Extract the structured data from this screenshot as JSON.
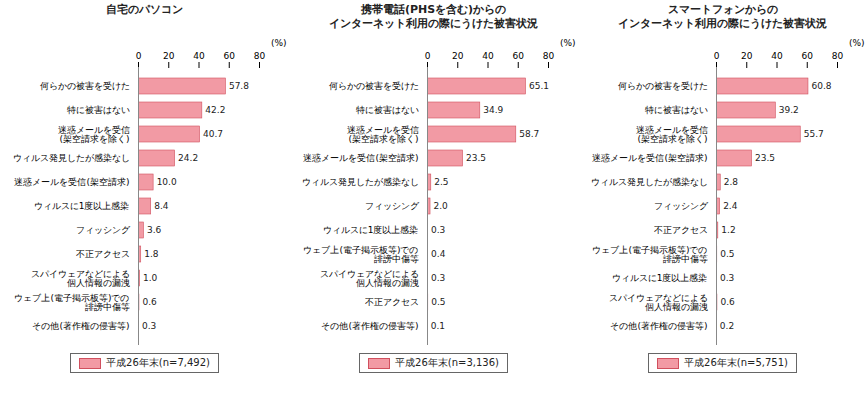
{
  "chart_data": [
    {
      "type": "bar",
      "orientation": "horizontal",
      "title": "自宅のパソコン",
      "xlabel": "(%)",
      "categories": [
        "何らかの被害を受けた",
        "特に被害はない",
        "迷惑メールを受信\n(架空請求を除く)",
        "ウィルス発見したが感染なし",
        "迷惑メールを受信(架空請求)",
        "ウィルスに1度以上感染",
        "フィッシング",
        "不正アクセス",
        "スパイウェアなどによる\n個人情報の漏洩",
        "ウェブ上(電子掲示板等)での\n誹謗中傷等",
        "その他(著作権の侵害等)"
      ],
      "series": [
        {
          "name": "平成26年末(n=7,492)",
          "color": "#f29aa4",
          "values": [
            57.8,
            42.2,
            40.7,
            24.2,
            10.0,
            8.4,
            3.6,
            1.8,
            1.0,
            0.6,
            0.3
          ],
          "value_labels": [
            "57.8",
            "42.2",
            "40.7",
            "24.2",
            "10.0",
            "8.4",
            "3.6",
            "1.8",
            "1.0",
            "0.6",
            "0.3"
          ]
        }
      ],
      "xlim": [
        0,
        80
      ],
      "xticks": [
        0,
        20,
        40,
        60,
        80
      ],
      "data_labels": true,
      "legend": "bottom"
    },
    {
      "type": "bar",
      "orientation": "horizontal",
      "title": "携帯電話(PHSを含む)からの\nインターネット利用の際にうけた被害状況",
      "xlabel": "(%)",
      "categories": [
        "何らかの被害を受けた",
        "特に被害はない",
        "迷惑メールを受信\n(架空請求を除く)",
        "迷惑メールを受信(架空請求)",
        "ウィルス発見したが感染なし",
        "フィッシング",
        "ウィルスに1度以上感染",
        "ウェブ上(電子掲示板等)での\n誹謗中傷等",
        "スパイウェアなどによる\n個人情報の漏洩",
        "不正アクセス",
        "その他(著作権の侵害等)"
      ],
      "series": [
        {
          "name": "平成26年末(n=3,136)",
          "color": "#f29aa4",
          "values": [
            65.1,
            34.9,
            58.7,
            23.5,
            2.5,
            2.0,
            0.3,
            0.4,
            0.3,
            0.5,
            0.1
          ],
          "value_labels": [
            "65.1",
            "34.9",
            "58.7",
            "23.5",
            "2.5",
            "2.0",
            "0.3",
            "0.4",
            "0.3",
            "0.5",
            "0.1"
          ]
        }
      ],
      "xlim": [
        0,
        80
      ],
      "xticks": [
        0,
        20,
        40,
        60,
        80
      ],
      "data_labels": true,
      "legend": "bottom"
    },
    {
      "type": "bar",
      "orientation": "horizontal",
      "title": "スマートフォンからの\nインターネット利用の際にうけた被害状況",
      "xlabel": "(%)",
      "categories": [
        "何らかの被害を受けた",
        "特に被害はない",
        "迷惑メールを受信\n(架空請求を除く)",
        "迷惑メールを受信(架空請求)",
        "ウィルス発見したが感染なし",
        "フィッシング",
        "不正アクセス",
        "ウェブ上(電子掲示板等)での\n誹謗中傷等",
        "ウィルスに1度以上感染",
        "スパイウェアなどによる\n個人情報の漏洩",
        "その他(著作権の侵害等)"
      ],
      "series": [
        {
          "name": "平成26年末(n=5,751)",
          "color": "#f29aa4",
          "values": [
            60.8,
            39.2,
            55.7,
            23.5,
            2.8,
            2.4,
            1.2,
            0.5,
            0.3,
            0.6,
            0.2
          ],
          "value_labels": [
            "60.8",
            "39.2",
            "55.7",
            "23.5",
            "2.8",
            "2.4",
            "1.2",
            "0.5",
            "0.3",
            "0.6",
            "0.2"
          ]
        }
      ],
      "xlim": [
        0,
        80
      ],
      "xticks": [
        0,
        20,
        40,
        60,
        80
      ],
      "data_labels": true,
      "legend": "bottom"
    }
  ]
}
